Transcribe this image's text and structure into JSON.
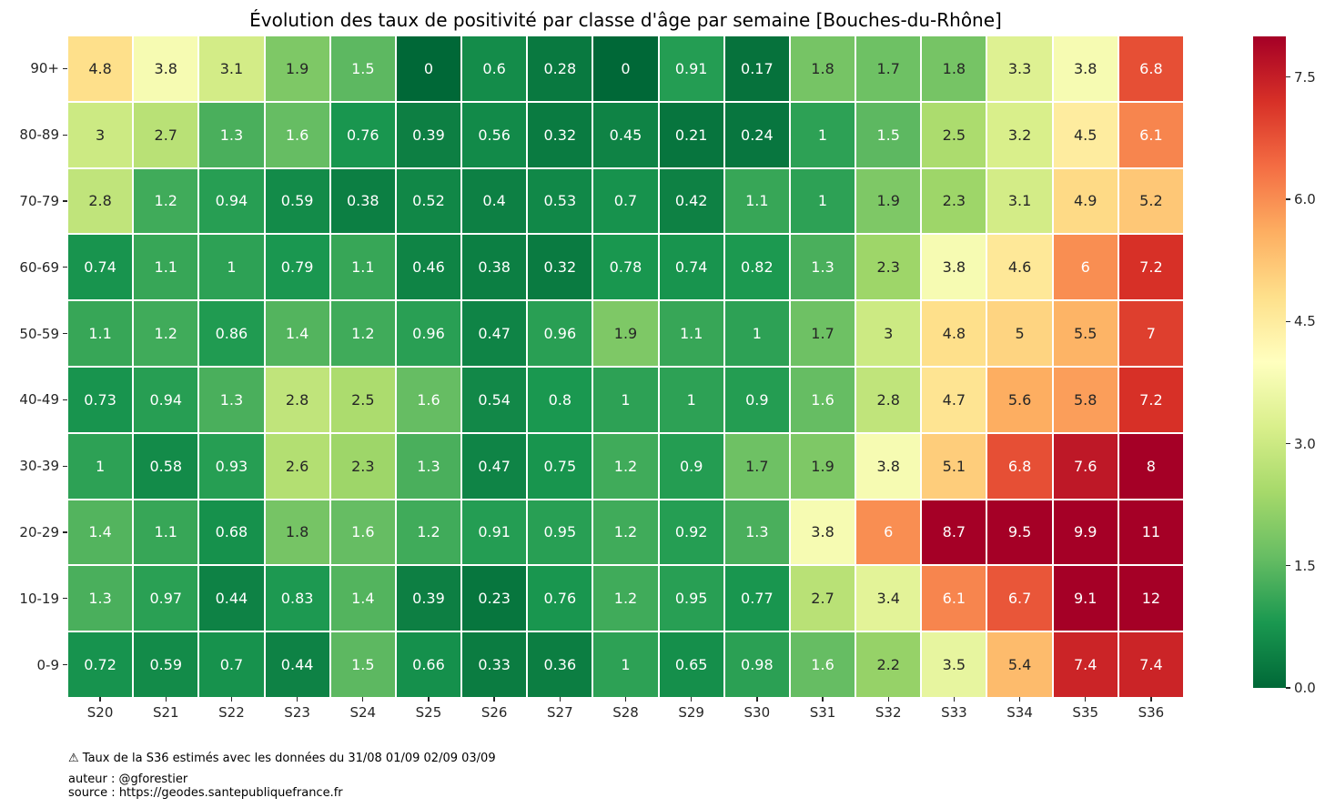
{
  "chart_data": {
    "type": "heatmap",
    "title": "Évolution des taux de positivité par classe d'âge par semaine [Bouches-du-Rhône]",
    "x_categories": [
      "S20",
      "S21",
      "S22",
      "S23",
      "S24",
      "S25",
      "S26",
      "S27",
      "S28",
      "S29",
      "S30",
      "S31",
      "S32",
      "S33",
      "S34",
      "S35",
      "S36"
    ],
    "y_categories": [
      "90+",
      "80-89",
      "70-79",
      "60-69",
      "50-59",
      "40-49",
      "30-39",
      "20-29",
      "10-19",
      "0-9"
    ],
    "values": [
      [
        4.8,
        3.8,
        3.1,
        1.9,
        1.5,
        0,
        0.6,
        0.28,
        0,
        0.91,
        0.17,
        1.8,
        1.7,
        1.8,
        3.3,
        3.8,
        6.8
      ],
      [
        3,
        2.7,
        1.3,
        1.6,
        0.76,
        0.39,
        0.56,
        0.32,
        0.45,
        0.21,
        0.24,
        1,
        1.5,
        2.5,
        3.2,
        4.5,
        6.1
      ],
      [
        2.8,
        1.2,
        0.94,
        0.59,
        0.38,
        0.52,
        0.4,
        0.53,
        0.7,
        0.42,
        1.1,
        1,
        1.9,
        2.3,
        3.1,
        4.9,
        5.2
      ],
      [
        0.74,
        1.1,
        1,
        0.79,
        1.1,
        0.46,
        0.38,
        0.32,
        0.78,
        0.74,
        0.82,
        1.3,
        2.3,
        3.8,
        4.6,
        6,
        7.2
      ],
      [
        1.1,
        1.2,
        0.86,
        1.4,
        1.2,
        0.96,
        0.47,
        0.96,
        1.9,
        1.1,
        1,
        1.7,
        3,
        4.8,
        5,
        5.5,
        7
      ],
      [
        0.73,
        0.94,
        1.3,
        2.8,
        2.5,
        1.6,
        0.54,
        0.8,
        1,
        1,
        0.9,
        1.6,
        2.8,
        4.7,
        5.6,
        5.8,
        7.2
      ],
      [
        1,
        0.58,
        0.93,
        2.6,
        2.3,
        1.3,
        0.47,
        0.75,
        1.2,
        0.9,
        1.7,
        1.9,
        3.8,
        5.1,
        6.8,
        7.6,
        8
      ],
      [
        1.4,
        1.1,
        0.68,
        1.8,
        1.6,
        1.2,
        0.91,
        0.95,
        1.2,
        0.92,
        1.3,
        3.8,
        6,
        8.7,
        9.5,
        9.9,
        11
      ],
      [
        1.3,
        0.97,
        0.44,
        0.83,
        1.4,
        0.39,
        0.23,
        0.76,
        1.2,
        0.95,
        0.77,
        2.7,
        3.4,
        6.1,
        6.7,
        9.1,
        12
      ],
      [
        0.72,
        0.59,
        0.7,
        0.44,
        1.5,
        0.66,
        0.33,
        0.36,
        1,
        0.65,
        0.98,
        1.6,
        2.2,
        3.5,
        5.4,
        7.4,
        7.4
      ]
    ],
    "colormap": "RdYlGn_r",
    "colormap_anchors_low_to_high": [
      "#006837",
      "#1a9850",
      "#66bd63",
      "#a6d96a",
      "#d9ef8b",
      "#ffffbf",
      "#fee08b",
      "#fdae61",
      "#f46d43",
      "#d73027",
      "#a50026"
    ],
    "vmin": 0,
    "vmax": 8,
    "colorbar_ticks": [
      7.5,
      6.0,
      4.5,
      3.0,
      1.5,
      0.0
    ],
    "colorbar_tick_labels": [
      "7.5",
      "6.0",
      "4.5",
      "3.0",
      "1.5",
      "0.0"
    ],
    "colorbar_position": "right",
    "grid": "white-cell-separators",
    "annotation_dark_text_color": "#262626",
    "annotation_light_text_color": "#ffffff"
  },
  "footer": {
    "warning": "⚠ Taux de la S36 estimés avec les données du 31/08 01/09 02/09 03/09",
    "author": "auteur : @gforestier",
    "source": "source : https://geodes.santepubliquefrance.fr"
  }
}
